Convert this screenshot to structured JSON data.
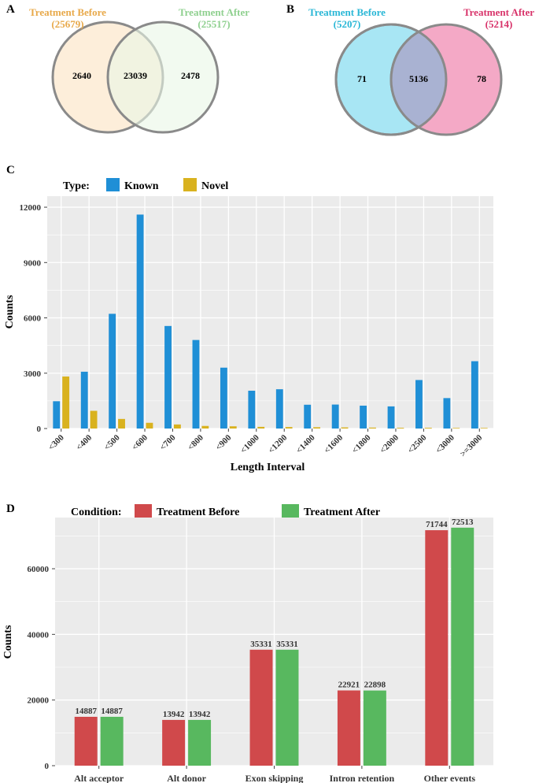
{
  "panels": {
    "A": {
      "label": "A",
      "left": {
        "title": "Treatment Before",
        "total": "(25679)",
        "color": "#e8a94a",
        "fill": "#fdebd3"
      },
      "right": {
        "title": "Treatment After",
        "total": "(25517)",
        "color": "#8fd08f",
        "fill": "#e9f7e6"
      },
      "only_left": "2640",
      "both": "23039",
      "only_right": "2478"
    },
    "B": {
      "label": "B",
      "left": {
        "title": "Treatment Before",
        "total": "(5207)",
        "color": "#2ab7d6",
        "fill": "#a8e6f4"
      },
      "right": {
        "title": "Treatment After",
        "total": "(5214)",
        "color": "#d8336a",
        "fill": "#f4a9c6"
      },
      "overlap_fill": "#a9b2d2",
      "only_left": "71",
      "both": "5136",
      "only_right": "78"
    },
    "C": {
      "label": "C"
    },
    "D": {
      "label": "D"
    }
  },
  "chart_data": [
    {
      "id": "C",
      "type": "bar",
      "title": "",
      "xlabel": "Length Interval",
      "ylabel": "Counts",
      "legend_title": "Type:",
      "legend_position": "top-left",
      "categories": [
        "<300",
        "<400",
        "<500",
        "<600",
        "<700",
        "<800",
        "<900",
        "<1000",
        "<1200",
        "<1400",
        "<1600",
        "<1800",
        "<2000",
        "<2500",
        "<3000",
        ">=3000"
      ],
      "series": [
        {
          "name": "Known",
          "color": "#1f8fd6",
          "values": [
            1480,
            3080,
            6220,
            11600,
            5560,
            4800,
            3300,
            2050,
            2130,
            1290,
            1300,
            1240,
            1200,
            2630,
            1650,
            3650
          ]
        },
        {
          "name": "Novel",
          "color": "#d9b21f",
          "values": [
            2820,
            960,
            520,
            310,
            220,
            140,
            120,
            90,
            80,
            70,
            60,
            50,
            40,
            40,
            30,
            30
          ]
        }
      ],
      "yticks": [
        0,
        3000,
        6000,
        9000,
        12000
      ],
      "ylim": [
        0,
        12600
      ],
      "grid": true
    },
    {
      "id": "D",
      "type": "bar",
      "title": "",
      "xlabel": "",
      "ylabel": "Counts",
      "legend_title": "Condition:",
      "legend_position": "top-left",
      "categories": [
        "Alt acceptor",
        "Alt donor",
        "Exon skipping",
        "Intron retention",
        "Other events"
      ],
      "series": [
        {
          "name": "Treatment Before",
          "color": "#d0494b",
          "values": [
            14887,
            13942,
            35331,
            22921,
            71744
          ]
        },
        {
          "name": "Treatment After",
          "color": "#58b85f",
          "values": [
            14887,
            13942,
            35331,
            22898,
            72513
          ]
        }
      ],
      "yticks": [
        0,
        20000,
        40000,
        60000
      ],
      "ylim": [
        0,
        75600
      ],
      "grid": true,
      "data_labels": true
    }
  ]
}
